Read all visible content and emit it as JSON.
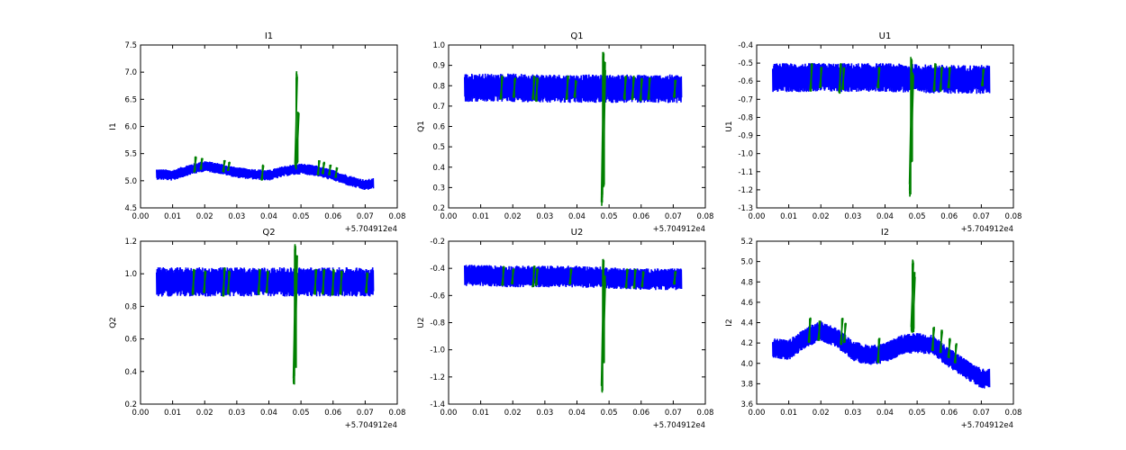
{
  "figure": {
    "background": "#ffffff"
  },
  "chart_data": [
    {
      "type": "line",
      "title": "I1",
      "xlabel": "",
      "ylabel": "I1",
      "xlim": [
        0.0,
        0.08
      ],
      "ylim": [
        4.5,
        7.5
      ],
      "xticks": [
        "0.00",
        "0.01",
        "0.02",
        "0.03",
        "0.04",
        "0.05",
        "0.06",
        "0.07",
        "0.08"
      ],
      "yticks": [
        "4.5",
        "5.0",
        "5.5",
        "6.0",
        "6.5",
        "7.0",
        "7.5"
      ],
      "offset_text": "+5.704912e4",
      "series": [
        {
          "role": "all",
          "color": "#0000ff",
          "x": [
            0.005,
            0.01,
            0.015,
            0.02,
            0.025,
            0.03,
            0.035,
            0.04,
            0.045,
            0.05,
            0.055,
            0.06,
            0.065,
            0.07,
            0.0725
          ],
          "center": [
            5.12,
            5.1,
            5.2,
            5.27,
            5.22,
            5.15,
            5.12,
            5.1,
            5.18,
            5.22,
            5.18,
            5.1,
            5.0,
            4.92,
            4.95
          ],
          "half_width": [
            0.1,
            0.1,
            0.1,
            0.1,
            0.1,
            0.1,
            0.1,
            0.1,
            0.1,
            0.1,
            0.1,
            0.1,
            0.1,
            0.1,
            0.1
          ]
        },
        {
          "role": "flagged",
          "color": "#008000",
          "segments": [
            {
              "x": 0.017,
              "lo": 5.15,
              "hi": 5.45
            },
            {
              "x": 0.019,
              "lo": 5.2,
              "hi": 5.42
            },
            {
              "x": 0.026,
              "lo": 5.15,
              "hi": 5.38
            },
            {
              "x": 0.0275,
              "lo": 5.18,
              "hi": 5.35
            },
            {
              "x": 0.038,
              "lo": 5.0,
              "hi": 5.3
            },
            {
              "x": 0.0485,
              "lo": 5.2,
              "hi": 7.02
            },
            {
              "x": 0.049,
              "lo": 5.3,
              "hi": 6.28
            },
            {
              "x": 0.0555,
              "lo": 5.1,
              "hi": 5.38
            },
            {
              "x": 0.057,
              "lo": 5.12,
              "hi": 5.35
            },
            {
              "x": 0.059,
              "lo": 5.1,
              "hi": 5.3
            },
            {
              "x": 0.061,
              "lo": 5.05,
              "hi": 5.25
            }
          ]
        }
      ]
    },
    {
      "type": "line",
      "title": "Q1",
      "xlabel": "",
      "ylabel": "Q1",
      "xlim": [
        0.0,
        0.08
      ],
      "ylim": [
        0.2,
        1.0
      ],
      "xticks": [
        "0.00",
        "0.01",
        "0.02",
        "0.03",
        "0.04",
        "0.05",
        "0.06",
        "0.07",
        "0.08"
      ],
      "yticks": [
        "0.2",
        "0.3",
        "0.4",
        "0.5",
        "0.6",
        "0.7",
        "0.8",
        "0.9",
        "1.0"
      ],
      "offset_text": "+5.704912e4",
      "series": [
        {
          "role": "all",
          "color": "#0000ff",
          "x": [
            0.005,
            0.02,
            0.04,
            0.06,
            0.0725
          ],
          "center": [
            0.79,
            0.79,
            0.785,
            0.785,
            0.785
          ],
          "half_width": [
            0.07,
            0.07,
            0.07,
            0.07,
            0.07
          ]
        },
        {
          "role": "flagged",
          "color": "#008000",
          "segments": [
            {
              "x": 0.0165,
              "lo": 0.73,
              "hi": 0.85
            },
            {
              "x": 0.0205,
              "lo": 0.74,
              "hi": 0.84
            },
            {
              "x": 0.0265,
              "lo": 0.73,
              "hi": 0.85
            },
            {
              "x": 0.0275,
              "lo": 0.72,
              "hi": 0.84
            },
            {
              "x": 0.037,
              "lo": 0.73,
              "hi": 0.85
            },
            {
              "x": 0.0395,
              "lo": 0.74,
              "hi": 0.83
            },
            {
              "x": 0.048,
              "lo": 0.21,
              "hi": 0.97
            },
            {
              "x": 0.0485,
              "lo": 0.3,
              "hi": 0.92
            },
            {
              "x": 0.055,
              "lo": 0.73,
              "hi": 0.85
            },
            {
              "x": 0.0575,
              "lo": 0.73,
              "hi": 0.85
            },
            {
              "x": 0.06,
              "lo": 0.72,
              "hi": 0.84
            },
            {
              "x": 0.0625,
              "lo": 0.73,
              "hi": 0.84
            },
            {
              "x": 0.0705,
              "lo": 0.74,
              "hi": 0.83
            }
          ]
        }
      ]
    },
    {
      "type": "line",
      "title": "U1",
      "xlabel": "",
      "ylabel": "U1",
      "xlim": [
        0.0,
        0.08
      ],
      "ylim": [
        -1.3,
        -0.4
      ],
      "xticks": [
        "0.00",
        "0.01",
        "0.02",
        "0.03",
        "0.04",
        "0.05",
        "0.06",
        "0.07",
        "0.08"
      ],
      "yticks": [
        "-1.3",
        "-1.2",
        "-1.1",
        "-1.0",
        "-0.9",
        "-0.8",
        "-0.7",
        "-0.6",
        "-0.5",
        "-0.4"
      ],
      "offset_text": "+5.704912e4",
      "series": [
        {
          "role": "all",
          "color": "#0000ff",
          "x": [
            0.005,
            0.02,
            0.04,
            0.06,
            0.0725
          ],
          "center": [
            -0.58,
            -0.58,
            -0.58,
            -0.59,
            -0.59
          ],
          "half_width": [
            0.08,
            0.08,
            0.08,
            0.08,
            0.08
          ]
        },
        {
          "role": "flagged",
          "color": "#008000",
          "segments": [
            {
              "x": 0.017,
              "lo": -0.66,
              "hi": -0.5
            },
            {
              "x": 0.02,
              "lo": -0.64,
              "hi": -0.52
            },
            {
              "x": 0.026,
              "lo": -0.67,
              "hi": -0.5
            },
            {
              "x": 0.027,
              "lo": -0.65,
              "hi": -0.52
            },
            {
              "x": 0.038,
              "lo": -0.64,
              "hi": -0.52
            },
            {
              "x": 0.048,
              "lo": -1.24,
              "hi": -0.46
            },
            {
              "x": 0.0485,
              "lo": -1.05,
              "hi": -0.55
            },
            {
              "x": 0.0555,
              "lo": -0.66,
              "hi": -0.5
            },
            {
              "x": 0.0575,
              "lo": -0.66,
              "hi": -0.52
            },
            {
              "x": 0.06,
              "lo": -0.64,
              "hi": -0.52
            },
            {
              "x": 0.0705,
              "lo": -0.63,
              "hi": -0.53
            }
          ]
        }
      ]
    },
    {
      "type": "line",
      "title": "Q2",
      "xlabel": "",
      "ylabel": "Q2",
      "xlim": [
        0.0,
        0.08
      ],
      "ylim": [
        0.2,
        1.2
      ],
      "xticks": [
        "0.00",
        "0.01",
        "0.02",
        "0.03",
        "0.04",
        "0.05",
        "0.06",
        "0.07",
        "0.08"
      ],
      "yticks": [
        "0.2",
        "0.4",
        "0.6",
        "0.8",
        "1.0",
        "1.2"
      ],
      "offset_text": "+5.704912e4",
      "series": [
        {
          "role": "all",
          "color": "#0000ff",
          "x": [
            0.005,
            0.02,
            0.04,
            0.06,
            0.0725
          ],
          "center": [
            0.95,
            0.95,
            0.95,
            0.95,
            0.95
          ],
          "half_width": [
            0.09,
            0.09,
            0.09,
            0.09,
            0.09
          ]
        },
        {
          "role": "flagged",
          "color": "#008000",
          "segments": [
            {
              "x": 0.0165,
              "lo": 0.87,
              "hi": 1.03
            },
            {
              "x": 0.02,
              "lo": 0.88,
              "hi": 1.02
            },
            {
              "x": 0.026,
              "lo": 0.86,
              "hi": 1.04
            },
            {
              "x": 0.0275,
              "lo": 0.87,
              "hi": 1.02
            },
            {
              "x": 0.037,
              "lo": 0.87,
              "hi": 1.03
            },
            {
              "x": 0.0395,
              "lo": 0.88,
              "hi": 1.02
            },
            {
              "x": 0.048,
              "lo": 0.3,
              "hi": 1.19
            },
            {
              "x": 0.0485,
              "lo": 0.42,
              "hi": 1.12
            },
            {
              "x": 0.0545,
              "lo": 0.87,
              "hi": 1.03
            },
            {
              "x": 0.057,
              "lo": 0.87,
              "hi": 1.03
            },
            {
              "x": 0.06,
              "lo": 0.86,
              "hi": 1.03
            },
            {
              "x": 0.0625,
              "lo": 0.87,
              "hi": 1.02
            },
            {
              "x": 0.0705,
              "lo": 0.88,
              "hi": 1.01
            }
          ]
        }
      ]
    },
    {
      "type": "line",
      "title": "U2",
      "xlabel": "",
      "ylabel": "U2",
      "xlim": [
        0.0,
        0.08
      ],
      "ylim": [
        -1.4,
        -0.2
      ],
      "xticks": [
        "0.00",
        "0.01",
        "0.02",
        "0.03",
        "0.04",
        "0.05",
        "0.06",
        "0.07",
        "0.08"
      ],
      "yticks": [
        "-1.4",
        "-1.2",
        "-1.0",
        "-0.8",
        "-0.6",
        "-0.4",
        "-0.2"
      ],
      "offset_text": "+5.704912e4",
      "series": [
        {
          "role": "all",
          "color": "#0000ff",
          "x": [
            0.005,
            0.02,
            0.04,
            0.06,
            0.0725
          ],
          "center": [
            -0.45,
            -0.46,
            -0.46,
            -0.48,
            -0.48
          ],
          "half_width": [
            0.08,
            0.08,
            0.08,
            0.08,
            0.08
          ]
        },
        {
          "role": "flagged",
          "color": "#008000",
          "segments": [
            {
              "x": 0.017,
              "lo": -0.53,
              "hi": -0.38
            },
            {
              "x": 0.02,
              "lo": -0.52,
              "hi": -0.4
            },
            {
              "x": 0.0265,
              "lo": -0.54,
              "hi": -0.38
            },
            {
              "x": 0.0275,
              "lo": -0.53,
              "hi": -0.4
            },
            {
              "x": 0.038,
              "lo": -0.52,
              "hi": -0.4
            },
            {
              "x": 0.048,
              "lo": -1.32,
              "hi": -0.33
            },
            {
              "x": 0.0485,
              "lo": -1.1,
              "hi": -0.45
            },
            {
              "x": 0.0555,
              "lo": -0.55,
              "hi": -0.4
            },
            {
              "x": 0.058,
              "lo": -0.55,
              "hi": -0.4
            },
            {
              "x": 0.0605,
              "lo": -0.54,
              "hi": -0.42
            },
            {
              "x": 0.0705,
              "lo": -0.52,
              "hi": -0.42
            }
          ]
        }
      ]
    },
    {
      "type": "line",
      "title": "I2",
      "xlabel": "",
      "ylabel": "I2",
      "xlim": [
        0.0,
        0.08
      ],
      "ylim": [
        3.6,
        5.2
      ],
      "xticks": [
        "0.00",
        "0.01",
        "0.02",
        "0.03",
        "0.04",
        "0.05",
        "0.06",
        "0.07",
        "0.08"
      ],
      "yticks": [
        "3.6",
        "3.8",
        "4.0",
        "4.2",
        "4.4",
        "4.6",
        "4.8",
        "5.0",
        "5.2"
      ],
      "offset_text": "+5.704912e4",
      "series": [
        {
          "role": "all",
          "color": "#0000ff",
          "x": [
            0.005,
            0.01,
            0.015,
            0.02,
            0.025,
            0.03,
            0.035,
            0.04,
            0.045,
            0.05,
            0.055,
            0.06,
            0.065,
            0.07,
            0.0725
          ],
          "center": [
            4.15,
            4.13,
            4.25,
            4.32,
            4.25,
            4.12,
            4.08,
            4.1,
            4.18,
            4.2,
            4.18,
            4.05,
            3.95,
            3.85,
            3.85
          ],
          "half_width": [
            0.1,
            0.1,
            0.1,
            0.1,
            0.1,
            0.1,
            0.1,
            0.1,
            0.1,
            0.1,
            0.1,
            0.1,
            0.1,
            0.1,
            0.1
          ]
        },
        {
          "role": "flagged",
          "color": "#008000",
          "segments": [
            {
              "x": 0.0165,
              "lo": 4.2,
              "hi": 4.45
            },
            {
              "x": 0.0195,
              "lo": 4.22,
              "hi": 4.42
            },
            {
              "x": 0.0265,
              "lo": 4.18,
              "hi": 4.45
            },
            {
              "x": 0.0275,
              "lo": 4.2,
              "hi": 4.4
            },
            {
              "x": 0.038,
              "lo": 4.0,
              "hi": 4.25
            },
            {
              "x": 0.0485,
              "lo": 4.3,
              "hi": 5.02
            },
            {
              "x": 0.049,
              "lo": 4.3,
              "hi": 4.9
            },
            {
              "x": 0.055,
              "lo": 4.12,
              "hi": 4.36
            },
            {
              "x": 0.0575,
              "lo": 4.1,
              "hi": 4.33
            },
            {
              "x": 0.06,
              "lo": 4.05,
              "hi": 4.25
            },
            {
              "x": 0.062,
              "lo": 4.0,
              "hi": 4.2
            }
          ]
        }
      ]
    }
  ]
}
